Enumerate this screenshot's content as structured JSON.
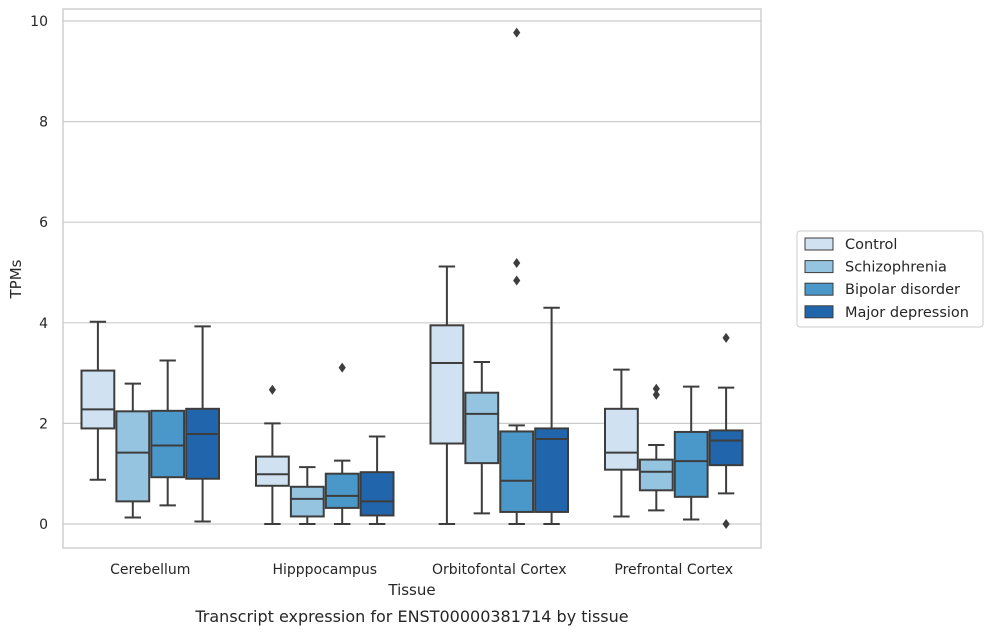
{
  "chart_data": {
    "type": "boxplot",
    "caption": "Transcript expression for ENST00000381714 by tissue",
    "xlabel": "Tissue",
    "ylabel": "TPMs",
    "ylim": [
      -0.45,
      10.25
    ],
    "yticks": [
      0,
      2,
      4,
      6,
      8,
      10
    ],
    "grid": "horizontal",
    "legend_position": "right",
    "categories": [
      "Cerebellum",
      "Hipppocampus",
      "Orbitofontal Cortex",
      "Prefrontal Cortex"
    ],
    "series": [
      {
        "name": "Control",
        "color": "#d0e1f2",
        "boxes": [
          {
            "whislo": 0.88,
            "q1": 1.9,
            "med": 2.28,
            "q3": 3.05,
            "whishi": 4.02,
            "fliers": []
          },
          {
            "whislo": 0.0,
            "q1": 0.76,
            "med": 0.99,
            "q3": 1.34,
            "whishi": 2.0,
            "fliers": [
              2.67
            ]
          },
          {
            "whislo": 0.0,
            "q1": 1.6,
            "med": 3.2,
            "q3": 3.95,
            "whishi": 5.12,
            "fliers": []
          },
          {
            "whislo": 0.15,
            "q1": 1.08,
            "med": 1.42,
            "q3": 2.29,
            "whishi": 3.07,
            "fliers": []
          }
        ]
      },
      {
        "name": "Schizophrenia",
        "color": "#94c4df",
        "boxes": [
          {
            "whislo": 0.13,
            "q1": 0.45,
            "med": 1.42,
            "q3": 2.24,
            "whishi": 2.79,
            "fliers": []
          },
          {
            "whislo": 0.0,
            "q1": 0.15,
            "med": 0.5,
            "q3": 0.74,
            "whishi": 1.13,
            "fliers": []
          },
          {
            "whislo": 0.21,
            "q1": 1.21,
            "med": 2.19,
            "q3": 2.61,
            "whishi": 3.22,
            "fliers": []
          },
          {
            "whislo": 0.27,
            "q1": 0.67,
            "med": 1.04,
            "q3": 1.28,
            "whishi": 1.57,
            "fliers": [
              2.57,
              2.69
            ]
          }
        ]
      },
      {
        "name": "Bipolar disorder",
        "color": "#4a98c9",
        "boxes": [
          {
            "whislo": 0.37,
            "q1": 0.93,
            "med": 1.56,
            "q3": 2.25,
            "whishi": 3.25,
            "fliers": []
          },
          {
            "whislo": 0.0,
            "q1": 0.32,
            "med": 0.56,
            "q3": 1.0,
            "whishi": 1.26,
            "fliers": [
              3.11
            ]
          },
          {
            "whislo": 0.0,
            "q1": 0.24,
            "med": 0.86,
            "q3": 1.84,
            "whishi": 1.96,
            "fliers": [
              4.84,
              5.19,
              9.77
            ]
          },
          {
            "whislo": 0.09,
            "q1": 0.54,
            "med": 1.25,
            "q3": 1.83,
            "whishi": 2.73,
            "fliers": []
          }
        ]
      },
      {
        "name": "Major depression",
        "color": "#2166ac",
        "boxes": [
          {
            "whislo": 0.05,
            "q1": 0.9,
            "med": 1.79,
            "q3": 2.29,
            "whishi": 3.93,
            "fliers": []
          },
          {
            "whislo": 0.0,
            "q1": 0.17,
            "med": 0.45,
            "q3": 1.03,
            "whishi": 1.74,
            "fliers": []
          },
          {
            "whislo": 0.0,
            "q1": 0.24,
            "med": 1.69,
            "q3": 1.9,
            "whishi": 4.3,
            "fliers": []
          },
          {
            "whislo": 0.61,
            "q1": 1.17,
            "med": 1.66,
            "q3": 1.86,
            "whishi": 2.71,
            "fliers": [
              0.0,
              3.7
            ]
          }
        ]
      }
    ]
  }
}
